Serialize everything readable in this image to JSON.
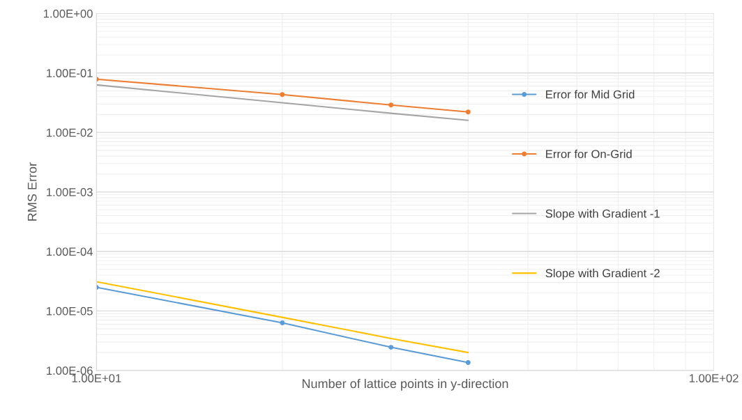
{
  "chart_data": {
    "type": "line",
    "xlabel": "Number of lattice points in y-direction",
    "ylabel": "RMS Error",
    "x": [
      10,
      20,
      30,
      40
    ],
    "series": [
      {
        "name": "Error for Mid Grid",
        "color": "#5b9bd5",
        "marker": "circle",
        "values": [
          2.5e-05,
          6.3e-06,
          2.45e-06,
          1.36e-06
        ]
      },
      {
        "name": "Error for On-Grid",
        "color": "#ed7d31",
        "marker": "circle",
        "values": [
          0.0785,
          0.0434,
          0.0289,
          0.0221
        ]
      },
      {
        "name": "Slope with Gradient -1",
        "color": "#a5a5a5",
        "marker": "none",
        "values": [
          0.063,
          0.0315,
          0.021,
          0.016
        ]
      },
      {
        "name": "Slope with Gradient -2",
        "color": "#ffc000",
        "marker": "none",
        "values": [
          3.1e-05,
          7.8e-06,
          3.45e-06,
          2e-06
        ]
      }
    ],
    "log": "xy",
    "xlim": [
      10,
      100
    ],
    "xticks": [
      {
        "value": 10,
        "label": "1.00E+01"
      },
      {
        "value": 100,
        "label": "1.00E+02"
      }
    ],
    "ylim": [
      1e-06,
      1
    ],
    "yticks": [
      {
        "value": 1e-06,
        "label": "1.00E-06"
      },
      {
        "value": 1e-05,
        "label": "1.00E-05"
      },
      {
        "value": 0.0001,
        "label": "1.00E-04"
      },
      {
        "value": 0.001,
        "label": "1.00E-03"
      },
      {
        "value": 0.01,
        "label": "1.00E-02"
      },
      {
        "value": 0.1,
        "label": "1.00E-01"
      },
      {
        "value": 1,
        "label": "1.00E+00"
      }
    ],
    "grid": true,
    "legend": "right",
    "line_style": "solid"
  }
}
